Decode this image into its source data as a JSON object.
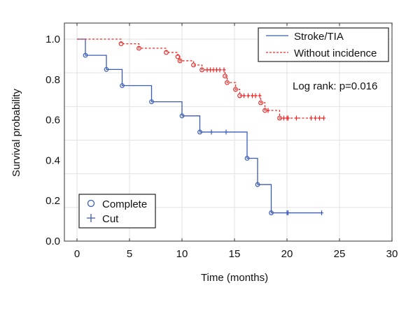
{
  "chart_data": {
    "type": "line",
    "subtype": "kaplan-meier",
    "title": "",
    "xlabel": "Time (months)",
    "ylabel": "Survival probability",
    "xlim": [
      -1.2,
      30
    ],
    "ylim": [
      0,
      1.08
    ],
    "xticks": [
      "0",
      "5",
      "10",
      "15",
      "20",
      "25",
      "30"
    ],
    "xtick_values": [
      0,
      5,
      10,
      15,
      20,
      25,
      30
    ],
    "yticks": [
      "0.0",
      "0.2",
      "0.4",
      "0.6",
      "0.8",
      "1.0"
    ],
    "ytick_values": [
      0,
      0.2,
      0.4,
      0.6,
      0.8,
      1.0
    ],
    "grid": true,
    "annotation": "Log rank: p=0.016",
    "legend": {
      "placement": "top-right",
      "entries": [
        "Stroke/TIA",
        "Without incidence"
      ]
    },
    "marker_legend": {
      "placement": "bottom-left",
      "complete": "Complete",
      "cut": "Cut"
    },
    "series": [
      {
        "name": "Stroke/TIA",
        "color": "#3a5bb8",
        "style": "solid",
        "events": [
          [
            0.8,
            0.92
          ],
          [
            2.8,
            0.85
          ],
          [
            4.3,
            0.77
          ],
          [
            7.1,
            0.69
          ],
          [
            10.0,
            0.62
          ],
          [
            11.7,
            0.54
          ],
          [
            16.2,
            0.41
          ],
          [
            17.2,
            0.28
          ],
          [
            18.5,
            0.14
          ]
        ],
        "censored": [
          12.8,
          14.2,
          20.0,
          20.1,
          23.3
        ],
        "end": 23.3
      },
      {
        "name": "Without incidence",
        "color": "#ee2a2a",
        "style": "dashed",
        "events": [
          [
            4.2,
            0.977
          ],
          [
            5.9,
            0.955
          ],
          [
            8.5,
            0.934
          ],
          [
            9.6,
            0.913
          ],
          [
            9.8,
            0.893
          ],
          [
            11.1,
            0.872
          ],
          [
            11.9,
            0.848
          ],
          [
            14.1,
            0.817
          ],
          [
            14.3,
            0.785
          ],
          [
            15.1,
            0.751
          ],
          [
            15.5,
            0.72
          ],
          [
            17.5,
            0.685
          ],
          [
            17.9,
            0.647
          ],
          [
            19.3,
            0.609
          ]
        ],
        "censored": [
          12.4,
          12.7,
          13.0,
          13.3,
          13.6,
          14.0,
          15.9,
          16.3,
          16.7,
          17.0,
          17.4,
          18.2,
          19.7,
          20.0,
          20.1,
          20.9,
          22.3,
          22.7,
          23.1,
          23.5
        ],
        "end": 23.5
      }
    ]
  }
}
